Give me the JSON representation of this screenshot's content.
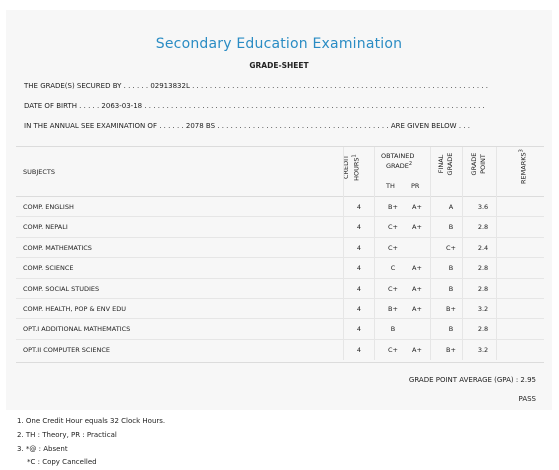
{
  "title": "Secondary Education Examination",
  "subtitle": "GRADE-SHEET",
  "info": {
    "line1": "THE GRADE(S) SECURED BY . . . . . . 02913832L . . . . . . . . . . . . . . . . . . . . . . . . . . . . . . . . . . . . . . . . . . . . . . . . . . . . . . . . . . . . . . . . . . .",
    "line2": "DATE OF BIRTH . . . . . 2063-03-18 . . . . . . . . . . . . . . . . . . . . . . . . . . . . . . . . . . . . . . . . . . . . . . . . . . . . . . . . . . . . . . . . . . . . . . . . . . . . .",
    "line3": "IN THE ANNUAL SEE EXAMINATION OF . . . . . . 2078 BS . . . . . . . . . . . . . . . . . . . . . . . . . . . . . . . . . . . . . . . ARE GIVEN BELOW . . ."
  },
  "headers": {
    "subjects": "SUBJECTS",
    "credit_a": "CREDIT",
    "credit_b": "HOURS",
    "credit_sup": "1",
    "obtained_a": "OBTAINED",
    "obtained_b": "GRADE",
    "obtained_sup": "2",
    "th": "TH",
    "pr": "PR",
    "final_a": "FINAL",
    "final_b": "GRADE",
    "gp_a": "GRADE",
    "gp_b": "POINT",
    "remarks": "REMARKS",
    "remarks_sup": "3"
  },
  "rows": [
    {
      "subject": "COMP. ENGLISH",
      "credit": "4",
      "th": "B+",
      "pr": "A+",
      "final": "A",
      "gp": "3.6"
    },
    {
      "subject": "COMP. NEPALI",
      "credit": "4",
      "th": "C+",
      "pr": "A+",
      "final": "B",
      "gp": "2.8"
    },
    {
      "subject": "COMP. MATHEMATICS",
      "credit": "4",
      "th": "C+",
      "pr": "",
      "final": "C+",
      "gp": "2.4"
    },
    {
      "subject": "COMP. SCIENCE",
      "credit": "4",
      "th": "C",
      "pr": "A+",
      "final": "B",
      "gp": "2.8"
    },
    {
      "subject": "COMP. SOCIAL STUDIES",
      "credit": "4",
      "th": "C+",
      "pr": "A+",
      "final": "B",
      "gp": "2.8"
    },
    {
      "subject": "COMP. HEALTH, POP & ENV EDU",
      "credit": "4",
      "th": "B+",
      "pr": "A+",
      "final": "B+",
      "gp": "3.2"
    },
    {
      "subject": "OPT.I ADDITIONAL MATHEMATICS",
      "credit": "4",
      "th": "B",
      "pr": "",
      "final": "B",
      "gp": "2.8"
    },
    {
      "subject": "OPT.II COMPUTER SCIENCE",
      "credit": "4",
      "th": "C+",
      "pr": "A+",
      "final": "B+",
      "gp": "3.2"
    }
  ],
  "gpa": "GRADE POINT AVERAGE (GPA) : 2.95",
  "result": "PASS",
  "notes": [
    "1. One Credit Hour equals 32 Clock Hours.",
    "2. TH : Theory, PR : Practical",
    "3. *@ : Absent",
    "*C : Copy Cancelled"
  ]
}
